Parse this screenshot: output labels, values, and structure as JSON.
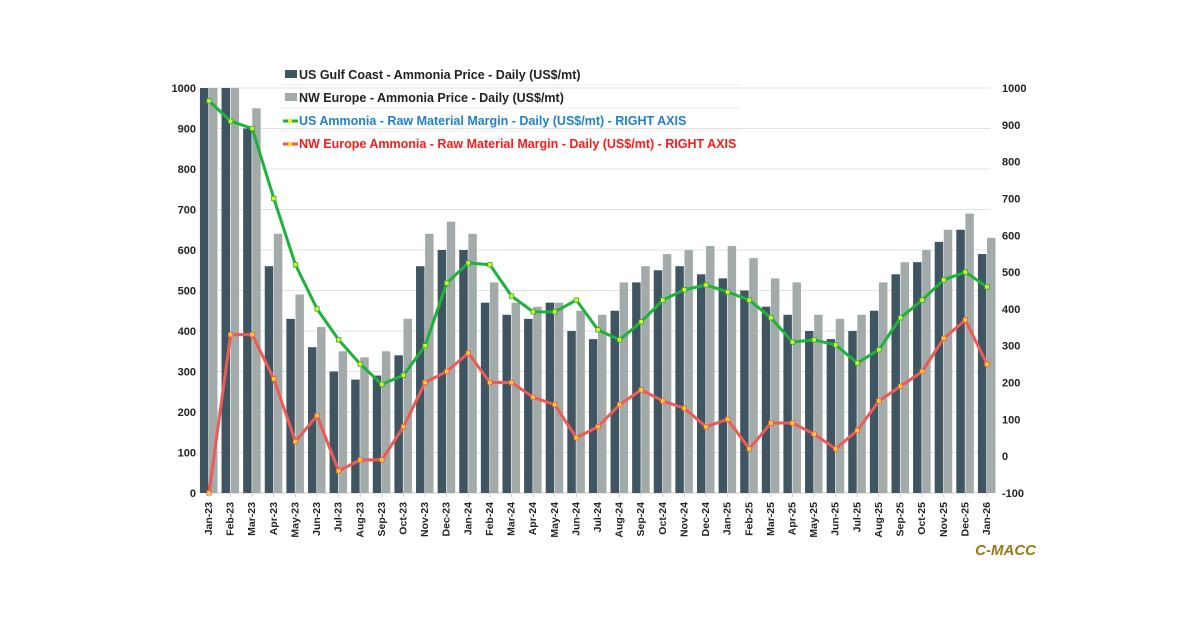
{
  "chart_data": {
    "type": "bar+line",
    "title": "",
    "brand": "C-MACC",
    "categories": [
      "Jan-23",
      "Feb-23",
      "Mar-23",
      "Apr-23",
      "May-23",
      "Jun-23",
      "Jul-23",
      "Aug-23",
      "Sep-23",
      "Oct-23",
      "Nov-23",
      "Dec-23",
      "Jan-24",
      "Feb-24",
      "Mar-24",
      "Apr-24",
      "May-24",
      "Jun-24",
      "Jul-24",
      "Aug-24",
      "Sep-24",
      "Oct-24",
      "Nov-24",
      "Dec-24",
      "Jan-25",
      "Feb-25",
      "Mar-25",
      "Apr-25",
      "May-25",
      "Jun-25",
      "Jul-25",
      "Aug-25",
      "Sep-25",
      "Oct-25",
      "Nov-25",
      "Dec-25",
      "Jan-26"
    ],
    "left_axis": {
      "ylim": [
        0,
        1000
      ],
      "ticks": [
        "0",
        "100",
        "200",
        "300",
        "400",
        "500",
        "600",
        "700",
        "800",
        "900",
        "1000"
      ]
    },
    "right_axis": {
      "ylim": [
        -100,
        1000
      ],
      "ticks": [
        "-100",
        "0",
        "100",
        "200",
        "300",
        "400",
        "500",
        "600",
        "700",
        "800",
        "900",
        "1000"
      ]
    },
    "grid": true,
    "legend_position": "top",
    "series": [
      {
        "name": "US Gulf Coast - Ammonia Price - Daily (US$/mt)",
        "type": "bar",
        "axis": "left",
        "color": "#3f5561",
        "label_color": "#222222",
        "values": [
          1000,
          1000,
          900,
          560,
          430,
          360,
          300,
          280,
          290,
          340,
          560,
          600,
          600,
          470,
          440,
          430,
          470,
          400,
          380,
          450,
          520,
          550,
          560,
          540,
          530,
          500,
          460,
          440,
          400,
          380,
          400,
          450,
          540,
          570,
          620,
          650,
          590
        ]
      },
      {
        "name": "NW Europe - Ammonia Price - Daily (US$/mt)",
        "type": "bar",
        "axis": "left",
        "color": "#a3abaa",
        "label_color": "#222222",
        "values": [
          1000,
          1000,
          950,
          640,
          490,
          410,
          350,
          335,
          350,
          430,
          640,
          670,
          640,
          520,
          470,
          460,
          470,
          450,
          440,
          520,
          560,
          590,
          600,
          610,
          610,
          580,
          530,
          520,
          440,
          430,
          440,
          520,
          570,
          600,
          650,
          690,
          630
        ]
      },
      {
        "name": "US Ammonia - Raw Material Margin - Daily (US$/mt) - RIGHT AXIS",
        "type": "line",
        "axis": "right",
        "color": "#1db33a",
        "marker_color": "#e6f01e",
        "label_color": "#1f7fd0",
        "values": [
          965,
          910,
          890,
          700,
          520,
          400,
          316,
          250,
          195,
          220,
          300,
          470,
          525,
          520,
          435,
          392,
          392,
          424,
          343,
          316,
          365,
          424,
          452,
          465,
          446,
          424,
          376,
          310,
          316,
          302,
          253,
          289,
          376,
          424,
          479,
          500,
          460
        ]
      },
      {
        "name": "NW Europe Ammonia - Raw Material Margin - Daily (US$/mt) - RIGHT AXIS",
        "type": "line",
        "axis": "right",
        "color": "#ee5a55",
        "marker_color": "#ffd21e",
        "label_color": "#ff1a1a",
        "values": [
          -100,
          330,
          330,
          210,
          40,
          110,
          -40,
          -10,
          -10,
          80,
          200,
          230,
          280,
          200,
          200,
          160,
          140,
          50,
          80,
          140,
          180,
          150,
          130,
          80,
          100,
          20,
          90,
          90,
          60,
          20,
          70,
          150,
          190,
          230,
          320,
          370,
          250
        ]
      }
    ]
  }
}
